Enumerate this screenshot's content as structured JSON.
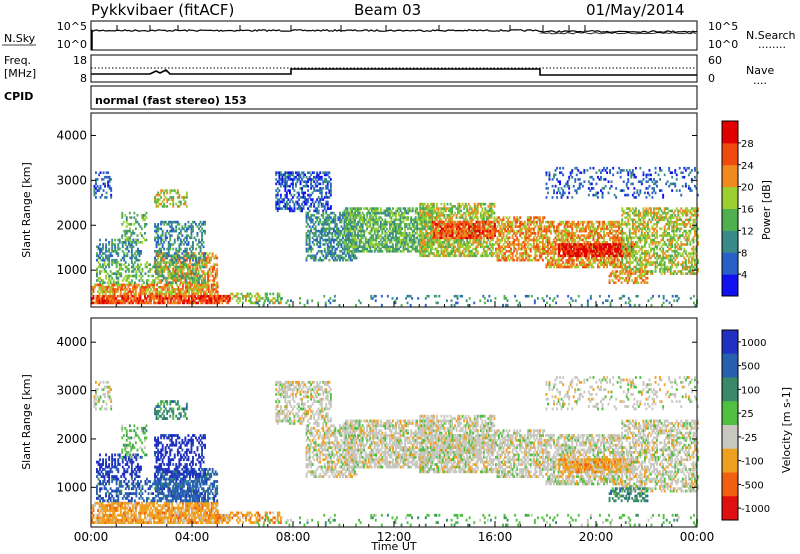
{
  "header": {
    "title": "Pykkvibaer (fitACF)",
    "beam": "Beam 03",
    "date": "01/May/2014"
  },
  "nsky_panel": {
    "left_label": "N.Sky",
    "left_ticks": [
      "10^5",
      "10^0"
    ],
    "right_ticks": [
      "10^5",
      "10^0"
    ],
    "right_label": "N.Search",
    "right_dots": "........"
  },
  "freq_panel": {
    "label_line1": "Freq.",
    "label_line2": "[MHz]",
    "left_ticks": [
      "18",
      "8"
    ],
    "right_ticks": [
      "60",
      "0"
    ],
    "right_label": "Nave",
    "right_dots": "...."
  },
  "cpid_panel": {
    "label": "CPID",
    "text": "normal (fast stereo) 153"
  },
  "x_axis": {
    "label": "Time UT",
    "tick_labels": [
      "00:00",
      "04:00",
      "08:00",
      "12:00",
      "16:00",
      "20:00",
      "00:00"
    ]
  },
  "chart_data": [
    {
      "type": "heatmap",
      "name": "power",
      "ylabel": "Slant Range [km]",
      "ylim": [
        180,
        4500
      ],
      "xlim_hours": [
        0,
        24
      ],
      "y_ticks": [
        "1000",
        "2000",
        "3000",
        "4000"
      ],
      "colorbar": {
        "label": "Power [dB]",
        "ticks": [
          "4",
          "8",
          "12",
          "16",
          "20",
          "24",
          "28"
        ],
        "colors": [
          "#1010f0",
          "#2860c8",
          "#3a8a8a",
          "#50b050",
          "#9cd030",
          "#f08a20",
          "#f04a10",
          "#e00000"
        ]
      }
    },
    {
      "type": "heatmap",
      "name": "velocity",
      "ylabel": "Slant Range [km]",
      "ylim": [
        180,
        4500
      ],
      "xlim_hours": [
        0,
        24
      ],
      "y_ticks": [
        "1000",
        "2000",
        "3000",
        "4000"
      ],
      "colorbar": {
        "label": "Velocity [m s-1]",
        "ticks": [
          "1000",
          "500",
          "100",
          "25",
          "-25",
          "-100",
          "-500",
          "-1000"
        ],
        "colors": [
          "#2030c0",
          "#2860b0",
          "#3a8a6a",
          "#50c040",
          "#c8c8c0",
          "#f0a020",
          "#f06010",
          "#e01010"
        ]
      }
    }
  ]
}
